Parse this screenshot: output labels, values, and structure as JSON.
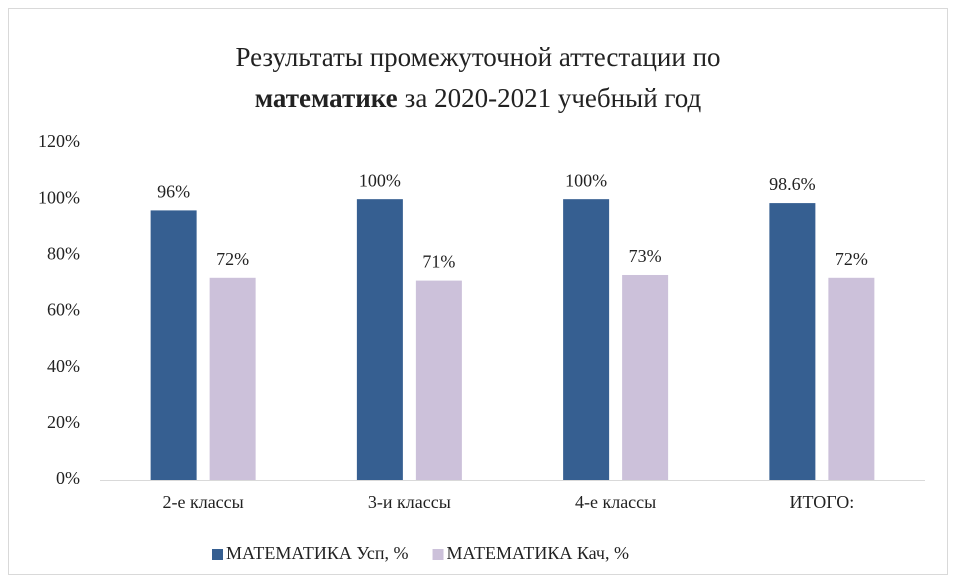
{
  "chart_data": {
    "type": "bar",
    "title": [
      {
        "text": "Результаты промежуточной аттестации по",
        "bold": false
      },
      {
        "text": "математике",
        "bold": true
      },
      {
        "text": "за 2020-2021 учебный год",
        "bold": false
      }
    ],
    "categories": [
      "2-е классы",
      "3-и классы",
      "4-е классы",
      "ИТОГО:"
    ],
    "series": [
      {
        "name": "МАТЕМАТИКА Усп, %",
        "color": "#365f91",
        "values": [
          96,
          100,
          100,
          98.6
        ],
        "value_labels": [
          "96%",
          "100%",
          "100%",
          "98.6%"
        ]
      },
      {
        "name": "МАТЕМАТИКА Кач, %",
        "color": "#ccc1da",
        "values": [
          72,
          71,
          73,
          72
        ],
        "value_labels": [
          "72%",
          "71%",
          "73%",
          "72%"
        ]
      }
    ],
    "ylim": [
      0,
      120
    ],
    "yticks": [
      {
        "value": 0,
        "label": "0%"
      },
      {
        "value": 20,
        "label": "20%"
      },
      {
        "value": 40,
        "label": "40%"
      },
      {
        "value": 60,
        "label": "60%"
      },
      {
        "value": 80,
        "label": "80%"
      },
      {
        "value": 100,
        "label": "100%"
      },
      {
        "value": 120,
        "label": "120%"
      }
    ],
    "grid": false,
    "legend": "bottom"
  }
}
